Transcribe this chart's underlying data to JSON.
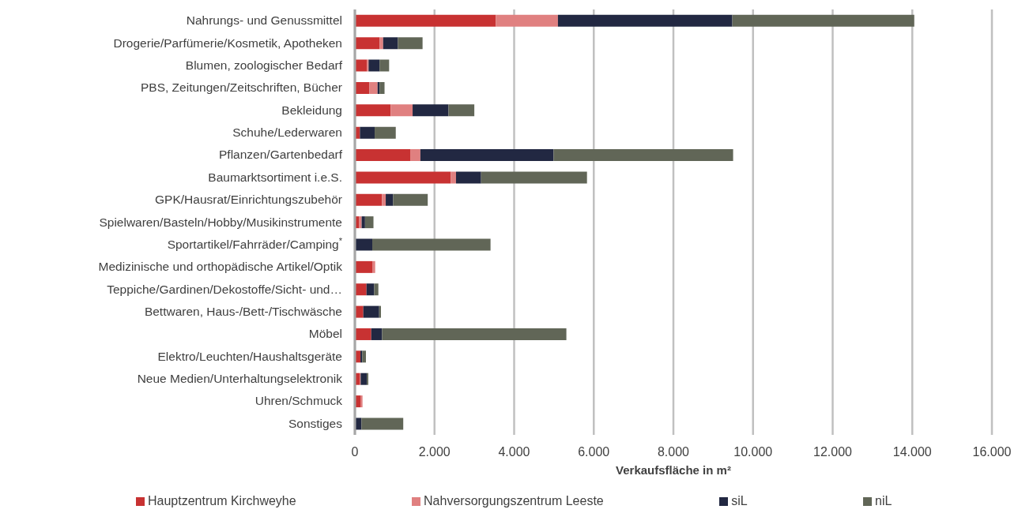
{
  "chart_data": {
    "type": "bar",
    "orientation": "horizontal",
    "stacked": true,
    "xlabel": "Verkaufsfläche in m²",
    "categories": [
      "Nahrungs- und Genussmittel",
      "Drogerie/Parfümerie/Kosmetik, Apotheken",
      "Blumen, zoologischer Bedarf",
      "PBS, Zeitungen/Zeitschriften, Bücher",
      "Bekleidung",
      "Schuhe/Lederwaren",
      "Pflanzen/Gartenbedarf",
      "Baumarktsortiment i.e.S.",
      "GPK/Hausrat/Einrichtungszubehör",
      "Spielwaren/Basteln/Hobby/Musikinstrumente",
      "Sportartikel/Fahrräder/Camping$^{*}$",
      "Medizinische und orthopädische Artikel/Optik",
      "Teppiche/Gardinen/Dekostoffe/Sicht- und…",
      "Bettwaren, Haus-/Bett-/Tischwäsche",
      "Möbel",
      "Elektro/Leuchten/Haushaltsgeräte",
      "Neue Medien/Unterhaltungselektronik",
      "Uhren/Schmuck",
      "Sonstiges"
    ],
    "series": [
      {
        "name": "Hauptzentrum Kirchweyhe",
        "color": "#c83232",
        "values": [
          3540,
          620,
          305,
          360,
          900,
          127,
          1390,
          2405,
          680,
          100,
          0,
          437,
          292,
          212,
          411,
          140,
          120,
          152,
          0
        ]
      },
      {
        "name": "Nahversorgungszentrum Leeste",
        "color": "#e08080",
        "values": [
          1560,
          90,
          40,
          210,
          550,
          0,
          255,
          135,
          95,
          70,
          0,
          73,
          0,
          0,
          0,
          0,
          25,
          40,
          0
        ]
      },
      {
        "name": "siL",
        "color": "#222842",
        "values": [
          4380,
          370,
          275,
          50,
          900,
          370,
          3345,
          630,
          185,
          85,
          437,
          0,
          193,
          398,
          271,
          45,
          155,
          0,
          165
        ]
      },
      {
        "name": "niL",
        "color": "#616657",
        "values": [
          4570,
          620,
          240,
          125,
          650,
          530,
          4510,
          2660,
          870,
          212,
          2970,
          0,
          105,
          45,
          4630,
          93,
          38,
          0,
          1050
        ]
      }
    ],
    "xlim": [
      0,
      16000
    ],
    "xticks": [
      0,
      {
        "value": 2000,
        "label": "2.000"
      },
      {
        "value": 4000,
        "label": "4.000"
      },
      {
        "value": 6000,
        "label": "6.000"
      },
      {
        "value": 8000,
        "label": "8.000"
      },
      {
        "value": 10000,
        "label": "10.000"
      },
      {
        "value": 12000,
        "label": "12.000"
      },
      {
        "value": 14000,
        "label": "14.000"
      },
      {
        "value": 16000,
        "label": "16.000"
      }
    ],
    "grid": "x",
    "legend": "bottom"
  }
}
